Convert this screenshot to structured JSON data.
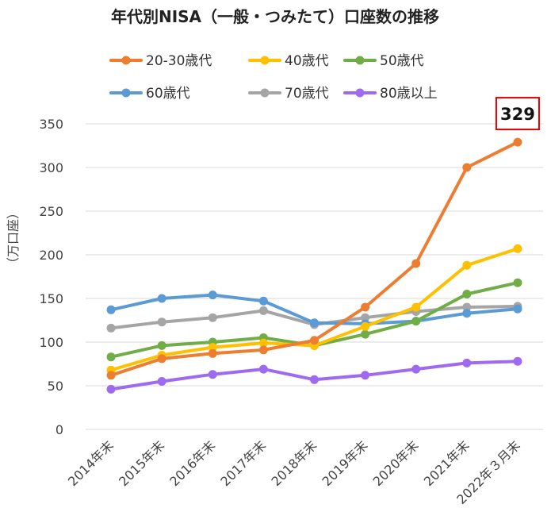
{
  "chart_data": {
    "type": "line",
    "title": "年代別NISA（一般・つみたて）口座数の推移",
    "xlabel": "",
    "ylabel": "（万口座）",
    "ylim": [
      0,
      350
    ],
    "yticks": [
      0,
      50,
      100,
      150,
      200,
      250,
      300,
      350
    ],
    "grid": true,
    "legend_position": "top",
    "categories": [
      "2014年末",
      "2015年末",
      "2016年末",
      "2017年末",
      "2018年末",
      "2019年末",
      "2020年末",
      "2021年末",
      "2022年３月末"
    ],
    "series": [
      {
        "name": "20-30歳代",
        "color": "#ED7D31",
        "values": [
          62,
          81,
          87,
          91,
          102,
          140,
          190,
          300,
          329
        ]
      },
      {
        "name": "40歳代",
        "color": "#FFC000",
        "values": [
          68,
          85,
          94,
          99,
          96,
          118,
          140,
          188,
          207
        ]
      },
      {
        "name": "50歳代",
        "color": "#70AD47",
        "values": [
          83,
          96,
          100,
          105,
          96,
          109,
          124,
          155,
          168
        ]
      },
      {
        "name": "60歳代",
        "color": "#5B9BD5",
        "values": [
          137,
          150,
          154,
          147,
          122,
          121,
          124,
          133,
          138
        ]
      },
      {
        "name": "70歳代",
        "color": "#A5A5A5",
        "values": [
          116,
          123,
          128,
          136,
          120,
          128,
          135,
          140,
          141
        ]
      },
      {
        "name": "80歳以上",
        "color": "#9E6BF0",
        "values": [
          46,
          55,
          63,
          69,
          57,
          62,
          69,
          76,
          78
        ]
      }
    ],
    "annotations": [
      {
        "text": "329",
        "series": "20-30歳代",
        "category": "2022年３月末",
        "box_color": "#E00000"
      }
    ]
  }
}
